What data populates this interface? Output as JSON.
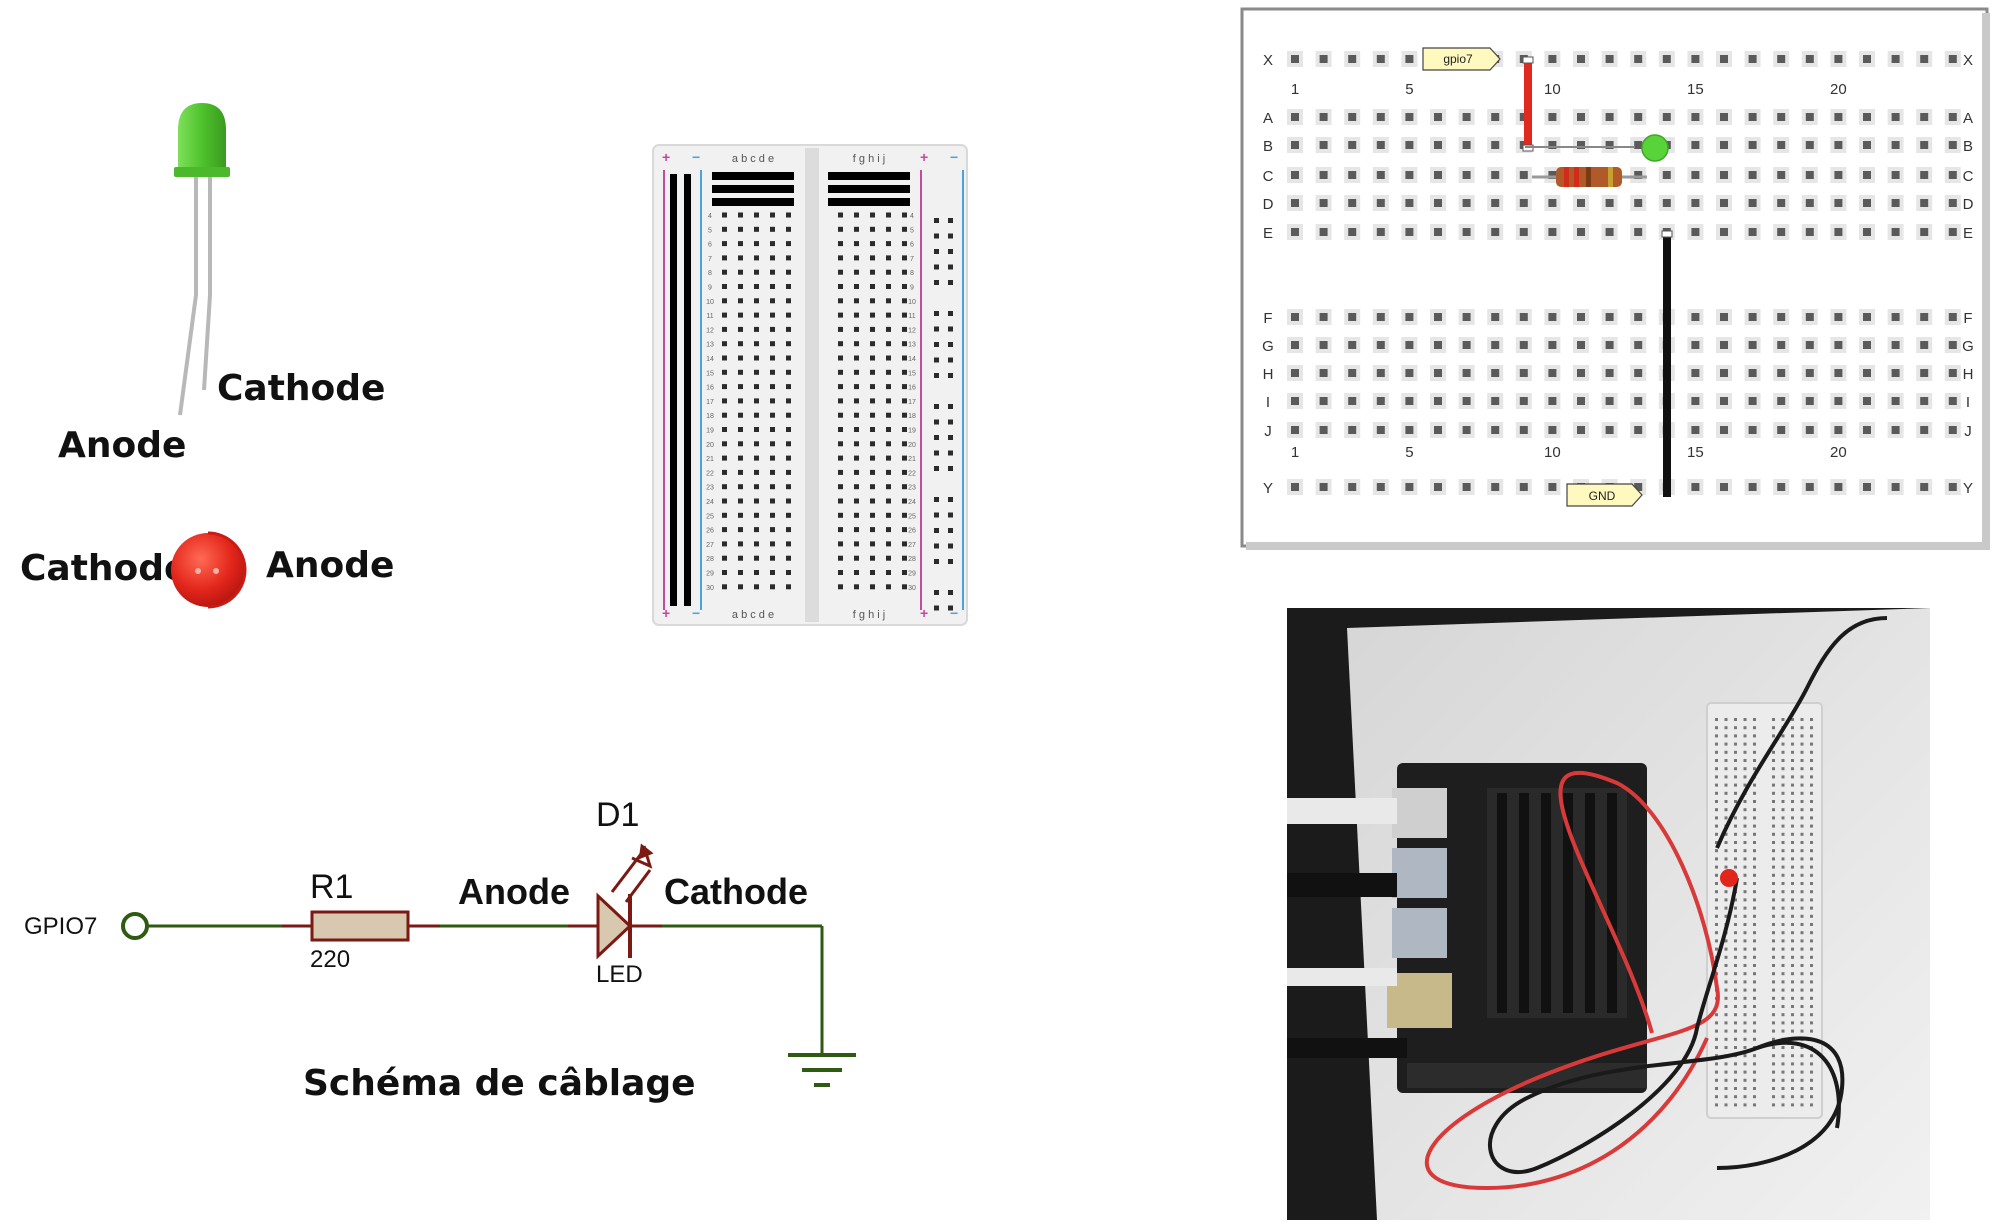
{
  "led_labels": {
    "green_cathode": "Cathode",
    "green_anode": "Anode",
    "red_cathode": "Cathode",
    "red_anode": "Anode"
  },
  "small_breadboard": {
    "cols_left": "a b c d e",
    "cols_right": "f g h i j",
    "rows": [
      "4",
      "5",
      "6",
      "7",
      "8",
      "9",
      "10",
      "11",
      "12",
      "13",
      "14",
      "15",
      "16",
      "17",
      "18",
      "19",
      "20",
      "21",
      "22",
      "23",
      "24",
      "25",
      "26",
      "27",
      "28",
      "29",
      "30"
    ],
    "plus": "+",
    "minus": "−"
  },
  "layout_board": {
    "row_labels_top": [
      "X",
      "A",
      "B",
      "C",
      "D",
      "E"
    ],
    "row_labels_bottom": [
      "F",
      "G",
      "H",
      "I",
      "J",
      "Y"
    ],
    "col_numbers": [
      "1",
      "5",
      "10",
      "15",
      "20"
    ],
    "gpio_tag": "gpio7",
    "gnd_tag": "GND"
  },
  "schematic": {
    "gpio": "GPIO7",
    "r_name": "R1",
    "r_value": "220",
    "anode": "Anode",
    "d_name": "D1",
    "d_type": "LED",
    "cathode": "Cathode",
    "caption": "Schéma de câblage"
  },
  "colors": {
    "wire": "#2e5a12",
    "component": "#7a1a12",
    "resistor_fill": "#d8c8b0",
    "green_led": "#5bd13a",
    "red_led": "#e3261b"
  }
}
